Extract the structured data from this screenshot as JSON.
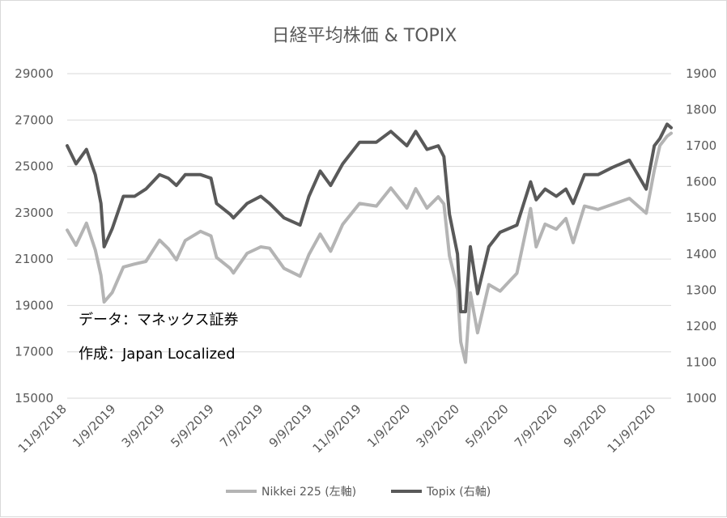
{
  "chart_data": {
    "type": "line",
    "title": "日経平均株価 & TOPIX",
    "x_ticks": [
      "11/9/2018",
      "1/9/2019",
      "3/9/2019",
      "5/9/2019",
      "7/9/2019",
      "9/9/2019",
      "11/9/2019",
      "1/9/2020",
      "3/9/2020",
      "5/9/2020",
      "7/9/2020",
      "9/9/2020",
      "11/9/2020"
    ],
    "x_range": [
      "2018-11-09",
      "2020-11-30"
    ],
    "y_left": {
      "ticks": [
        "29000",
        "27000",
        "25000",
        "23000",
        "21000",
        "19000",
        "17000",
        "15000"
      ],
      "min": 15000,
      "max": 29000
    },
    "y_right": {
      "ticks": [
        "1900",
        "1800",
        "1700",
        "1600",
        "1500",
        "1400",
        "1300",
        "1200",
        "1100",
        "1000"
      ],
      "min": 1000,
      "max": 1900
    },
    "grid": true,
    "legend_position": "bottom",
    "annotations": [
      "データ：マネックス証券",
      "作成：Japan Localized"
    ],
    "series": [
      {
        "name": "Nikkei 225 (左軸)",
        "axis": "left",
        "color": "#b4b4b4",
        "points": [
          [
            "2018-11-09",
            22250
          ],
          [
            "2018-11-20",
            21600
          ],
          [
            "2018-12-03",
            22550
          ],
          [
            "2018-12-14",
            21400
          ],
          [
            "2018-12-21",
            20300
          ],
          [
            "2018-12-25",
            19150
          ],
          [
            "2019-01-04",
            19560
          ],
          [
            "2019-01-18",
            20660
          ],
          [
            "2019-02-01",
            20790
          ],
          [
            "2019-02-15",
            20900
          ],
          [
            "2019-03-04",
            21820
          ],
          [
            "2019-03-15",
            21450
          ],
          [
            "2019-03-25",
            20970
          ],
          [
            "2019-04-05",
            21800
          ],
          [
            "2019-04-24",
            22200
          ],
          [
            "2019-05-07",
            22000
          ],
          [
            "2019-05-14",
            21070
          ],
          [
            "2019-05-31",
            20600
          ],
          [
            "2019-06-04",
            20400
          ],
          [
            "2019-06-21",
            21250
          ],
          [
            "2019-07-08",
            21530
          ],
          [
            "2019-07-19",
            21470
          ],
          [
            "2019-08-06",
            20600
          ],
          [
            "2019-08-26",
            20260
          ],
          [
            "2019-09-06",
            21200
          ],
          [
            "2019-09-20",
            22080
          ],
          [
            "2019-10-03",
            21340
          ],
          [
            "2019-10-18",
            22500
          ],
          [
            "2019-11-08",
            23400
          ],
          [
            "2019-11-29",
            23290
          ],
          [
            "2019-12-17",
            24070
          ],
          [
            "2020-01-06",
            23200
          ],
          [
            "2020-01-17",
            24040
          ],
          [
            "2020-01-31",
            23200
          ],
          [
            "2020-02-14",
            23690
          ],
          [
            "2020-02-21",
            23380
          ],
          [
            "2020-02-28",
            21140
          ],
          [
            "2020-03-09",
            19700
          ],
          [
            "2020-03-13",
            17430
          ],
          [
            "2020-03-19",
            16550
          ],
          [
            "2020-03-25",
            19550
          ],
          [
            "2020-04-03",
            17820
          ],
          [
            "2020-04-17",
            19900
          ],
          [
            "2020-05-01",
            19620
          ],
          [
            "2020-05-22",
            20390
          ],
          [
            "2020-06-08",
            23180
          ],
          [
            "2020-06-15",
            21530
          ],
          [
            "2020-06-26",
            22510
          ],
          [
            "2020-07-10",
            22290
          ],
          [
            "2020-07-22",
            22750
          ],
          [
            "2020-07-31",
            21710
          ],
          [
            "2020-08-14",
            23290
          ],
          [
            "2020-08-31",
            23140
          ],
          [
            "2020-09-18",
            23360
          ],
          [
            "2020-10-09",
            23620
          ],
          [
            "2020-10-30",
            22980
          ],
          [
            "2020-11-09",
            24840
          ],
          [
            "2020-11-16",
            25900
          ],
          [
            "2020-11-25",
            26300
          ],
          [
            "2020-11-30",
            26430
          ]
        ]
      },
      {
        "name": "Topix (右軸)",
        "axis": "right",
        "color": "#595959",
        "points": [
          [
            "2018-11-09",
            1700
          ],
          [
            "2018-11-20",
            1650
          ],
          [
            "2018-12-03",
            1690
          ],
          [
            "2018-12-14",
            1620
          ],
          [
            "2018-12-21",
            1540
          ],
          [
            "2018-12-25",
            1420
          ],
          [
            "2019-01-04",
            1470
          ],
          [
            "2019-01-18",
            1560
          ],
          [
            "2019-02-01",
            1560
          ],
          [
            "2019-02-15",
            1580
          ],
          [
            "2019-03-04",
            1620
          ],
          [
            "2019-03-15",
            1610
          ],
          [
            "2019-03-25",
            1590
          ],
          [
            "2019-04-05",
            1620
          ],
          [
            "2019-04-24",
            1620
          ],
          [
            "2019-05-07",
            1610
          ],
          [
            "2019-05-14",
            1540
          ],
          [
            "2019-05-31",
            1510
          ],
          [
            "2019-06-04",
            1500
          ],
          [
            "2019-06-21",
            1540
          ],
          [
            "2019-07-08",
            1560
          ],
          [
            "2019-07-19",
            1540
          ],
          [
            "2019-08-06",
            1500
          ],
          [
            "2019-08-26",
            1480
          ],
          [
            "2019-09-06",
            1560
          ],
          [
            "2019-09-20",
            1630
          ],
          [
            "2019-10-03",
            1590
          ],
          [
            "2019-10-18",
            1650
          ],
          [
            "2019-11-08",
            1710
          ],
          [
            "2019-11-29",
            1710
          ],
          [
            "2019-12-17",
            1740
          ],
          [
            "2020-01-06",
            1700
          ],
          [
            "2020-01-17",
            1740
          ],
          [
            "2020-01-31",
            1690
          ],
          [
            "2020-02-14",
            1700
          ],
          [
            "2020-02-21",
            1670
          ],
          [
            "2020-02-28",
            1510
          ],
          [
            "2020-03-09",
            1400
          ],
          [
            "2020-03-13",
            1240
          ],
          [
            "2020-03-19",
            1240
          ],
          [
            "2020-03-25",
            1420
          ],
          [
            "2020-04-03",
            1290
          ],
          [
            "2020-04-17",
            1420
          ],
          [
            "2020-05-01",
            1460
          ],
          [
            "2020-05-22",
            1480
          ],
          [
            "2020-06-08",
            1600
          ],
          [
            "2020-06-15",
            1550
          ],
          [
            "2020-06-26",
            1580
          ],
          [
            "2020-07-10",
            1560
          ],
          [
            "2020-07-22",
            1580
          ],
          [
            "2020-07-31",
            1540
          ],
          [
            "2020-08-14",
            1620
          ],
          [
            "2020-08-31",
            1620
          ],
          [
            "2020-09-18",
            1640
          ],
          [
            "2020-10-09",
            1660
          ],
          [
            "2020-10-30",
            1580
          ],
          [
            "2020-11-09",
            1700
          ],
          [
            "2020-11-16",
            1720
          ],
          [
            "2020-11-25",
            1760
          ],
          [
            "2020-11-30",
            1750
          ]
        ]
      }
    ]
  }
}
